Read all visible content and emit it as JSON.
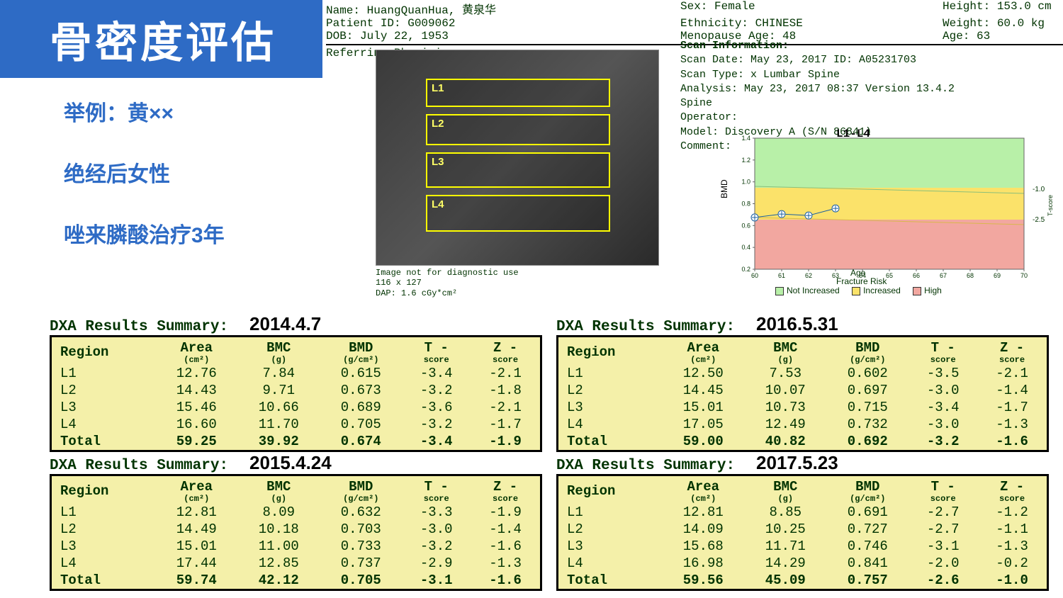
{
  "title": "骨密度评估",
  "bullets": [
    "举例：黄××",
    "绝经后女性",
    "唑来膦酸治疗3年"
  ],
  "patient": {
    "name": "Name: HuangQuanHua, 黄泉华",
    "pid": "Patient ID: G009062",
    "dob": "DOB: July 22, 1953",
    "sex": "Sex: Female",
    "eth": "Ethnicity: CHINESE",
    "meno": "Menopause Age: 48",
    "height": "Height: 153.0 cm",
    "weight": "Weight: 60.0 kg",
    "age": "Age: 63",
    "ref": "Referring Physician:"
  },
  "scan_vert": [
    "L1",
    "L2",
    "L3",
    "L4"
  ],
  "scan_note": [
    "Image not for diagnostic use",
    "116 x 127",
    "DAP: 1.6 cGy*cm²"
  ],
  "scan_info": {
    "hdr": "Scan Information:",
    "l1": "Scan Date: May 23, 2017        ID:  A05231703",
    "l2": "Scan Type: x Lumbar Spine",
    "l3": "Analysis: May 23, 2017 08:37 Version 13.4.2",
    "l3b": "          Spine",
    "l4": "Operator:",
    "l5": "Model:   Discovery A (S/N 86841)",
    "l6": "Comment:"
  },
  "ref": {
    "title": "L1-L4",
    "ylabel": "BMD",
    "sub1": "Age",
    "sub2": "Fracture Risk",
    "legend": [
      {
        "c": "#b8f0a8",
        "t": "Not Increased"
      },
      {
        "c": "#fbe26a",
        "t": "Increased"
      },
      {
        "c": "#f2a7a0",
        "t": "High"
      }
    ],
    "t_right": [
      "-1.0",
      "-2.5"
    ],
    "yticks": [
      "0.2",
      "0.4",
      "0.6",
      "0.8",
      "1.0",
      "1.2",
      "1.4"
    ],
    "xticks": [
      "60",
      "61",
      "62",
      "63",
      "64",
      "65",
      "66",
      "67",
      "68",
      "69",
      "70"
    ],
    "points": [
      {
        "x": 60,
        "y": 0.674
      },
      {
        "x": 61,
        "y": 0.705
      },
      {
        "x": 62,
        "y": 0.692
      },
      {
        "x": 63,
        "y": 0.757
      }
    ]
  },
  "headers": {
    "region": "Region",
    "area": "Area",
    "area_u": "(cm²)",
    "bmc": "BMC",
    "bmc_u": "(g)",
    "bmd": "BMD",
    "bmd_u": "(g/cm²)",
    "t": "T -",
    "t_u": "score",
    "z": "Z -",
    "z_u": "score"
  },
  "summary_label": "DXA Results Summary:",
  "tables": [
    {
      "date": "2014.4.7",
      "rows": [
        [
          "L1",
          "12.76",
          "7.84",
          "0.615",
          "-3.4",
          "-2.1"
        ],
        [
          "L2",
          "14.43",
          "9.71",
          "0.673",
          "-3.2",
          "-1.8"
        ],
        [
          "L3",
          "15.46",
          "10.66",
          "0.689",
          "-3.6",
          "-2.1"
        ],
        [
          "L4",
          "16.60",
          "11.70",
          "0.705",
          "-3.2",
          "-1.7"
        ],
        [
          "Total",
          "59.25",
          "39.92",
          "0.674",
          "-3.4",
          "-1.9"
        ]
      ]
    },
    {
      "date": "2016.5.31",
      "rows": [
        [
          "L1",
          "12.50",
          "7.53",
          "0.602",
          "-3.5",
          "-2.1"
        ],
        [
          "L2",
          "14.45",
          "10.07",
          "0.697",
          "-3.0",
          "-1.4"
        ],
        [
          "L3",
          "15.01",
          "10.73",
          "0.715",
          "-3.4",
          "-1.7"
        ],
        [
          "L4",
          "17.05",
          "12.49",
          "0.732",
          "-3.0",
          "-1.3"
        ],
        [
          "Total",
          "59.00",
          "40.82",
          "0.692",
          "-3.2",
          "-1.6"
        ]
      ]
    },
    {
      "date": "2015.4.24",
      "rows": [
        [
          "L1",
          "12.81",
          "8.09",
          "0.632",
          "-3.3",
          "-1.9"
        ],
        [
          "L2",
          "14.49",
          "10.18",
          "0.703",
          "-3.0",
          "-1.4"
        ],
        [
          "L3",
          "15.01",
          "11.00",
          "0.733",
          "-3.2",
          "-1.6"
        ],
        [
          "L4",
          "17.44",
          "12.85",
          "0.737",
          "-2.9",
          "-1.3"
        ],
        [
          "Total",
          "59.74",
          "42.12",
          "0.705",
          "-3.1",
          "-1.6"
        ]
      ]
    },
    {
      "date": "2017.5.23",
      "rows": [
        [
          "L1",
          "12.81",
          "8.85",
          "0.691",
          "-2.7",
          "-1.2"
        ],
        [
          "L2",
          "14.09",
          "10.25",
          "0.727",
          "-2.7",
          "-1.1"
        ],
        [
          "L3",
          "15.68",
          "11.71",
          "0.746",
          "-3.1",
          "-1.3"
        ],
        [
          "L4",
          "16.98",
          "14.29",
          "0.841",
          "-2.0",
          "-0.2"
        ],
        [
          "Total",
          "59.56",
          "45.09",
          "0.757",
          "-2.6",
          "-1.0"
        ]
      ]
    }
  ]
}
